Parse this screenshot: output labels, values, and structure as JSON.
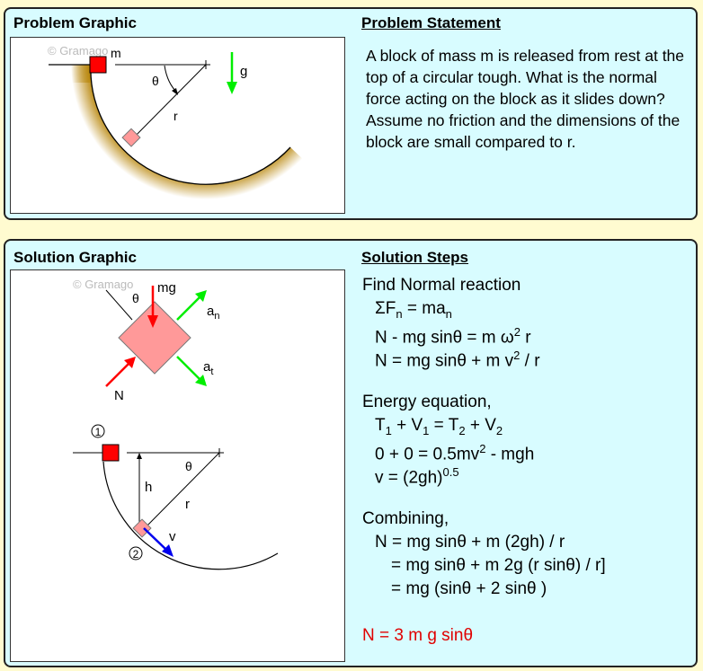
{
  "problem": {
    "graphic_title": "Problem Graphic",
    "statement_title": "Problem Statement",
    "statement": "A block of mass m is released from rest at the top of a circular tough. What is the normal force acting on the block as it slides down? Assume no friction and the dimensions of the block are small compared to r.",
    "graphic": {
      "watermark": "© Gramago",
      "mass_label": "m",
      "theta": "θ",
      "radius": "r",
      "gravity": "g"
    }
  },
  "solution": {
    "graphic_title": "Solution Graphic",
    "steps_title": "Solution Steps",
    "graphic": {
      "watermark": "© Gramago",
      "mg": "mg",
      "theta": "θ",
      "an": "a",
      "an_sub": "n",
      "at": "a",
      "at_sub": "t",
      "N": "N",
      "pos1": "1",
      "pos2": "2",
      "theta2": "θ",
      "h": "h",
      "r": "r",
      "v": "v"
    },
    "colors": {
      "force": "#ff0000",
      "accel": "#00ee00",
      "velocity": "#0000ee",
      "answer": "#e00000"
    },
    "lines": [
      {
        "cls": "",
        "parts": [
          {
            "t": "Find Normal reaction"
          }
        ]
      },
      {
        "cls": "ind",
        "parts": [
          {
            "t": "ΣF"
          },
          {
            "t": "n",
            "s": "sub"
          },
          {
            "t": " = ma"
          },
          {
            "t": "n",
            "s": "sub"
          }
        ]
      },
      {
        "cls": "ind",
        "parts": [
          {
            "t": "N - mg sinθ = m ω"
          },
          {
            "t": "2",
            "s": "sup"
          },
          {
            "t": " r"
          }
        ]
      },
      {
        "cls": "ind",
        "parts": [
          {
            "t": "N = mg sinθ + m v"
          },
          {
            "t": "2",
            "s": "sup"
          },
          {
            "t": " / r"
          }
        ]
      },
      {
        "cls": "",
        "parts": [
          {
            "t": ""
          }
        ]
      },
      {
        "cls": "",
        "parts": [
          {
            "t": "Energy equation,"
          }
        ]
      },
      {
        "cls": "ind",
        "parts": [
          {
            "t": "T"
          },
          {
            "t": "1",
            "s": "sub"
          },
          {
            "t": " + V"
          },
          {
            "t": "1",
            "s": "sub"
          },
          {
            "t": " = T"
          },
          {
            "t": "2",
            "s": "sub"
          },
          {
            "t": " + V"
          },
          {
            "t": "2",
            "s": "sub"
          }
        ]
      },
      {
        "cls": "ind",
        "parts": [
          {
            "t": "0 + 0 = 0.5mv"
          },
          {
            "t": "2",
            "s": "sup"
          },
          {
            "t": " - mgh"
          }
        ]
      },
      {
        "cls": "ind",
        "parts": [
          {
            "t": "v = (2gh)"
          },
          {
            "t": "0.5",
            "s": "sup"
          }
        ]
      },
      {
        "cls": "",
        "parts": [
          {
            "t": ""
          }
        ]
      },
      {
        "cls": "",
        "parts": [
          {
            "t": "Combining,"
          }
        ]
      },
      {
        "cls": "ind",
        "parts": [
          {
            "t": "N = mg sinθ + m (2gh) / r"
          }
        ]
      },
      {
        "cls": "ind2",
        "parts": [
          {
            "t": "= mg sinθ + m 2g (r sinθ) / r]"
          }
        ]
      },
      {
        "cls": "ind2",
        "parts": [
          {
            "t": "= mg (sinθ + 2 sinθ )"
          }
        ]
      },
      {
        "cls": "",
        "parts": [
          {
            "t": ""
          }
        ]
      },
      {
        "cls": "ans",
        "parts": [
          {
            "t": "N = 3 m g sinθ"
          }
        ]
      }
    ]
  }
}
